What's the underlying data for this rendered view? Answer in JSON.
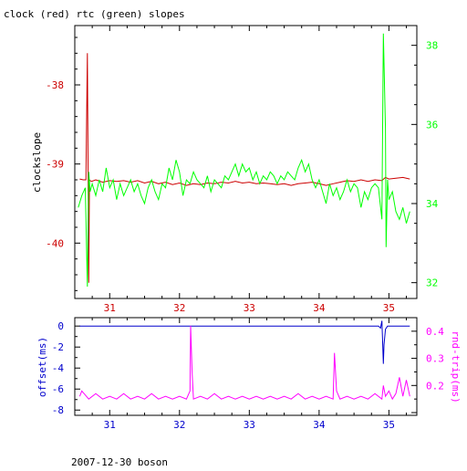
{
  "title": "clock (red) rtc (green) slopes",
  "footer": "2007-12-30 boson",
  "colors": {
    "clock": "#cc0000",
    "rtc": "#00ff00",
    "offset": "#0000cc",
    "rndtrip": "#ff00ff",
    "top_axis_left": "#cc0000",
    "top_axis_right": "#00ff00",
    "bottom_axis_left": "#0000cc",
    "bottom_axis_right": "#ff00ff"
  },
  "chart_data": [
    {
      "type": "line",
      "xlim": [
        30.5,
        35.4
      ],
      "x_ticks": [
        "31",
        "32",
        "33",
        "34",
        "35"
      ],
      "ylabel": "clockslope",
      "ylim_left": [
        -40.7,
        -37.25
      ],
      "left_ticks": [
        "-38",
        "-39",
        "-40"
      ],
      "ylim_right": [
        31.6,
        38.5
      ],
      "right_ticks": [
        "38",
        "36",
        "34",
        "32"
      ],
      "grid": false,
      "series": [
        {
          "name": "clock",
          "axis": "left",
          "x": [
            30.57,
            30.62,
            30.66,
            30.68,
            30.7,
            30.71,
            30.72,
            30.74,
            30.8,
            30.9,
            31.0,
            31.1,
            31.2,
            31.3,
            31.4,
            31.5,
            31.6,
            31.7,
            31.8,
            31.9,
            32.0,
            32.1,
            32.2,
            32.3,
            32.4,
            32.5,
            32.6,
            32.7,
            32.8,
            32.9,
            33.0,
            33.1,
            33.2,
            33.3,
            33.4,
            33.5,
            33.6,
            33.7,
            33.8,
            33.9,
            34.0,
            34.1,
            34.2,
            34.3,
            34.4,
            34.5,
            34.6,
            34.7,
            34.8,
            34.9,
            34.95,
            35.0,
            35.1,
            35.2,
            35.3
          ],
          "y": [
            -39.19,
            -39.2,
            -39.2,
            -37.6,
            -40.5,
            -39.2,
            -39.21,
            -39.22,
            -39.2,
            -39.23,
            -39.21,
            -39.22,
            -39.21,
            -39.23,
            -39.21,
            -39.24,
            -39.22,
            -39.25,
            -39.23,
            -39.26,
            -39.24,
            -39.27,
            -39.25,
            -39.26,
            -39.24,
            -39.25,
            -39.23,
            -39.24,
            -39.22,
            -39.24,
            -39.23,
            -39.25,
            -39.24,
            -39.25,
            -39.26,
            -39.25,
            -39.27,
            -39.25,
            -39.24,
            -39.23,
            -39.25,
            -39.27,
            -39.25,
            -39.23,
            -39.21,
            -39.22,
            -39.2,
            -39.22,
            -39.2,
            -39.21,
            -39.17,
            -39.19,
            -39.18,
            -39.17,
            -39.19
          ]
        },
        {
          "name": "rtc",
          "axis": "right",
          "x": [
            30.55,
            30.6,
            30.65,
            30.68,
            30.7,
            30.72,
            30.75,
            30.8,
            30.85,
            30.9,
            30.95,
            31.0,
            31.05,
            31.1,
            31.15,
            31.2,
            31.25,
            31.3,
            31.35,
            31.4,
            31.45,
            31.5,
            31.55,
            31.6,
            31.65,
            31.7,
            31.75,
            31.8,
            31.85,
            31.9,
            31.95,
            32.0,
            32.05,
            32.1,
            32.15,
            32.2,
            32.25,
            32.3,
            32.35,
            32.4,
            32.45,
            32.5,
            32.55,
            32.6,
            32.65,
            32.7,
            32.75,
            32.8,
            32.85,
            32.9,
            32.95,
            33.0,
            33.05,
            33.1,
            33.15,
            33.2,
            33.25,
            33.3,
            33.35,
            33.4,
            33.45,
            33.5,
            33.55,
            33.6,
            33.65,
            33.7,
            33.75,
            33.8,
            33.85,
            33.9,
            33.95,
            34.0,
            34.05,
            34.1,
            34.15,
            34.2,
            34.25,
            34.3,
            34.35,
            34.4,
            34.45,
            34.5,
            34.55,
            34.6,
            34.65,
            34.7,
            34.75,
            34.8,
            34.85,
            34.9,
            34.92,
            34.95,
            34.96,
            34.98,
            35.0,
            35.05,
            35.1,
            35.15,
            35.2,
            35.25,
            35.3
          ],
          "y": [
            33.9,
            34.2,
            34.4,
            31.9,
            34.8,
            34.3,
            34.5,
            34.2,
            34.6,
            34.3,
            34.9,
            34.4,
            34.6,
            34.1,
            34.5,
            34.2,
            34.4,
            34.6,
            34.3,
            34.5,
            34.2,
            34.0,
            34.4,
            34.6,
            34.3,
            34.1,
            34.5,
            34.4,
            34.9,
            34.6,
            35.1,
            34.8,
            34.2,
            34.6,
            34.5,
            34.8,
            34.6,
            34.5,
            34.4,
            34.7,
            34.3,
            34.6,
            34.5,
            34.4,
            34.7,
            34.6,
            34.8,
            35.0,
            34.7,
            35.0,
            34.8,
            34.9,
            34.6,
            34.8,
            34.5,
            34.7,
            34.6,
            34.8,
            34.7,
            34.5,
            34.7,
            34.6,
            34.8,
            34.7,
            34.6,
            34.9,
            35.1,
            34.8,
            35.0,
            34.6,
            34.4,
            34.6,
            34.3,
            34.0,
            34.5,
            34.2,
            34.4,
            34.1,
            34.3,
            34.6,
            34.3,
            34.5,
            34.4,
            33.9,
            34.3,
            34.1,
            34.4,
            34.5,
            34.4,
            33.6,
            38.3,
            35.9,
            32.9,
            34.6,
            34.1,
            34.3,
            33.8,
            33.6,
            33.9,
            33.5,
            33.8
          ]
        }
      ]
    },
    {
      "type": "line",
      "xlim": [
        30.5,
        35.4
      ],
      "x_ticks": [
        "31",
        "32",
        "33",
        "34",
        "35"
      ],
      "ylabel_left": "offset(ms)",
      "ylabel_right": "rnd-trip(ms)",
      "ylim_left": [
        -8.5,
        0.8
      ],
      "left_ticks": [
        "0",
        "-2",
        "-4",
        "-6",
        "-8"
      ],
      "ylim_right": [
        0.09,
        0.45
      ],
      "right_ticks": [
        "0.4",
        "0.3",
        "0.2"
      ],
      "grid": false,
      "series": [
        {
          "name": "offset",
          "axis": "left",
          "x": [
            30.57,
            31.0,
            31.5,
            32.0,
            32.5,
            33.0,
            33.5,
            34.0,
            34.5,
            34.85,
            34.88,
            34.9,
            34.91,
            34.92,
            34.93,
            34.95,
            34.98,
            35.0,
            35.3
          ],
          "y": [
            0.0,
            0.0,
            0.0,
            0.0,
            0.0,
            0.0,
            0.0,
            0.0,
            0.0,
            0.0,
            -0.2,
            0.5,
            -1.5,
            -3.6,
            -1.8,
            -0.3,
            0.0,
            0.0,
            0.0
          ]
        },
        {
          "name": "rnd-trip",
          "axis": "right",
          "x": [
            30.57,
            30.6,
            30.7,
            30.8,
            30.9,
            31.0,
            31.1,
            31.2,
            31.3,
            31.4,
            31.5,
            31.6,
            31.7,
            31.8,
            31.9,
            32.0,
            32.1,
            32.15,
            32.16,
            32.18,
            32.2,
            32.3,
            32.4,
            32.5,
            32.6,
            32.7,
            32.8,
            32.9,
            33.0,
            33.1,
            33.2,
            33.3,
            33.4,
            33.5,
            33.6,
            33.7,
            33.8,
            33.9,
            34.0,
            34.1,
            34.2,
            34.22,
            34.25,
            34.3,
            34.4,
            34.5,
            34.6,
            34.7,
            34.8,
            34.9,
            34.92,
            34.95,
            35.0,
            35.05,
            35.1,
            35.15,
            35.2,
            35.25,
            35.3
          ],
          "y": [
            0.16,
            0.18,
            0.15,
            0.17,
            0.15,
            0.16,
            0.15,
            0.17,
            0.15,
            0.16,
            0.15,
            0.17,
            0.15,
            0.16,
            0.15,
            0.16,
            0.15,
            0.18,
            0.42,
            0.25,
            0.15,
            0.16,
            0.15,
            0.17,
            0.15,
            0.16,
            0.15,
            0.16,
            0.15,
            0.16,
            0.15,
            0.16,
            0.15,
            0.16,
            0.15,
            0.17,
            0.15,
            0.16,
            0.15,
            0.16,
            0.15,
            0.32,
            0.18,
            0.15,
            0.16,
            0.15,
            0.16,
            0.15,
            0.17,
            0.15,
            0.2,
            0.16,
            0.18,
            0.15,
            0.17,
            0.23,
            0.16,
            0.22,
            0.16
          ]
        }
      ]
    }
  ]
}
